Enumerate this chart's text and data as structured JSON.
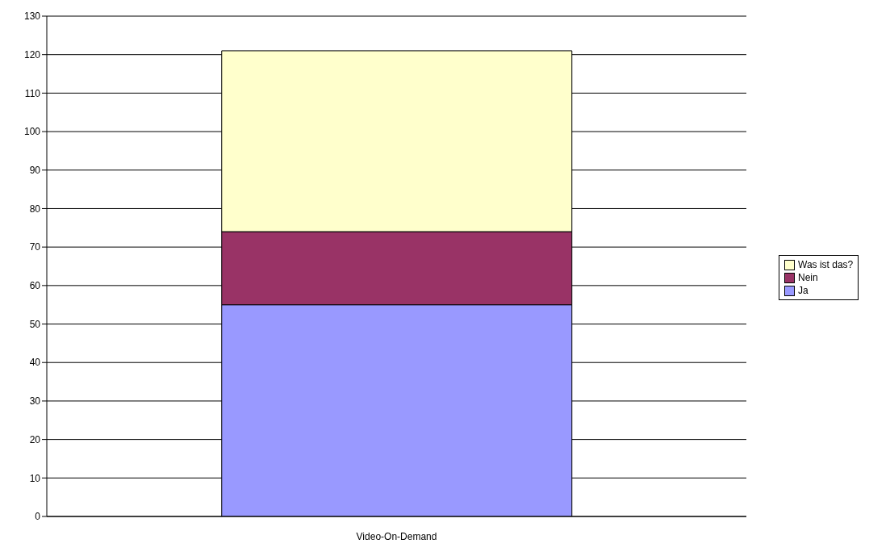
{
  "chart_data": {
    "type": "bar",
    "stacked": true,
    "categories": [
      "Video-On-Demand"
    ],
    "series": [
      {
        "name": "Ja",
        "color": "#9999ff",
        "values": [
          55
        ]
      },
      {
        "name": "Nein",
        "color": "#993366",
        "values": [
          19
        ]
      },
      {
        "name": "Was ist das?",
        "color": "#ffffcc",
        "values": [
          47
        ]
      }
    ],
    "ylim": [
      0,
      130
    ],
    "yticks": [
      0,
      10,
      20,
      30,
      40,
      50,
      60,
      70,
      80,
      90,
      100,
      110,
      120,
      130
    ],
    "grid": "y",
    "legend": "right"
  }
}
